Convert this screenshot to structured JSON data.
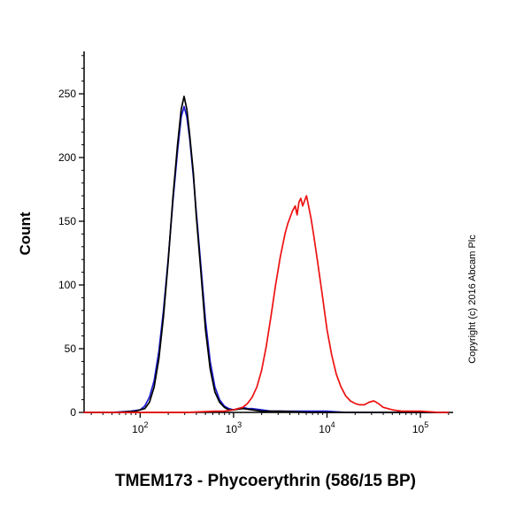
{
  "title": "TMEM173 - Phycoerythrin (586/15 BP)",
  "ylabel": "Count",
  "copyright": "Copyright (c) 2016 Abcam Plc",
  "chart_data": {
    "type": "line",
    "subtype": "flow-cytometry-histogram",
    "title": "TMEM173 - Phycoerythrin (586/15 BP)",
    "xlabel": "TMEM173 - Phycoerythrin (586/15 BP)",
    "ylabel": "Count",
    "x_axis": {
      "scale": "log10",
      "min_log": 1.4,
      "max_log": 5.35,
      "tick_exponents": [
        2,
        3,
        4,
        5
      ],
      "tick_base": "10"
    },
    "y_axis": {
      "min": 0,
      "max": 250,
      "major_ticks": [
        0,
        50,
        100,
        150,
        200,
        250
      ],
      "minor_step": 10,
      "minor_max": 280
    },
    "grid": false,
    "legend": "none",
    "series": [
      {
        "name": "control-blue",
        "color": "#1c1ccc",
        "points": [
          [
            1.4,
            0
          ],
          [
            1.7,
            0
          ],
          [
            1.9,
            1
          ],
          [
            2.0,
            2
          ],
          [
            2.05,
            5
          ],
          [
            2.1,
            12
          ],
          [
            2.15,
            25
          ],
          [
            2.2,
            48
          ],
          [
            2.25,
            80
          ],
          [
            2.3,
            120
          ],
          [
            2.35,
            165
          ],
          [
            2.4,
            205
          ],
          [
            2.44,
            232
          ],
          [
            2.47,
            240
          ],
          [
            2.5,
            232
          ],
          [
            2.53,
            215
          ],
          [
            2.57,
            185
          ],
          [
            2.6,
            158
          ],
          [
            2.65,
            115
          ],
          [
            2.7,
            72
          ],
          [
            2.75,
            40
          ],
          [
            2.8,
            20
          ],
          [
            2.85,
            10
          ],
          [
            2.9,
            5
          ],
          [
            2.95,
            3
          ],
          [
            3.0,
            2
          ],
          [
            3.05,
            3
          ],
          [
            3.1,
            4
          ],
          [
            3.15,
            3
          ],
          [
            3.2,
            3
          ],
          [
            3.3,
            2
          ],
          [
            3.4,
            1
          ],
          [
            3.6,
            1
          ],
          [
            3.8,
            1
          ],
          [
            4.0,
            1
          ],
          [
            4.2,
            0
          ],
          [
            4.6,
            0
          ],
          [
            5.0,
            0
          ],
          [
            5.3,
            0
          ]
        ]
      },
      {
        "name": "control-black",
        "color": "#000000",
        "points": [
          [
            1.4,
            0
          ],
          [
            1.75,
            0
          ],
          [
            1.95,
            1
          ],
          [
            2.05,
            3
          ],
          [
            2.1,
            8
          ],
          [
            2.15,
            20
          ],
          [
            2.2,
            42
          ],
          [
            2.25,
            75
          ],
          [
            2.3,
            118
          ],
          [
            2.35,
            168
          ],
          [
            2.4,
            210
          ],
          [
            2.44,
            238
          ],
          [
            2.47,
            248
          ],
          [
            2.5,
            238
          ],
          [
            2.53,
            218
          ],
          [
            2.57,
            188
          ],
          [
            2.6,
            155
          ],
          [
            2.65,
            110
          ],
          [
            2.7,
            65
          ],
          [
            2.75,
            34
          ],
          [
            2.8,
            16
          ],
          [
            2.85,
            8
          ],
          [
            2.9,
            4
          ],
          [
            2.95,
            2
          ],
          [
            3.0,
            2
          ],
          [
            3.1,
            3
          ],
          [
            3.2,
            2
          ],
          [
            3.3,
            1
          ],
          [
            3.5,
            1
          ],
          [
            3.8,
            0
          ],
          [
            4.2,
            0
          ],
          [
            4.8,
            0
          ],
          [
            5.3,
            0
          ]
        ]
      },
      {
        "name": "tmem173-pe-red",
        "color": "#ee1111",
        "points": [
          [
            1.4,
            0
          ],
          [
            2.0,
            0
          ],
          [
            2.5,
            0
          ],
          [
            2.8,
            1
          ],
          [
            2.9,
            1
          ],
          [
            3.0,
            2
          ],
          [
            3.1,
            4
          ],
          [
            3.15,
            7
          ],
          [
            3.2,
            12
          ],
          [
            3.25,
            20
          ],
          [
            3.3,
            33
          ],
          [
            3.35,
            52
          ],
          [
            3.4,
            75
          ],
          [
            3.45,
            100
          ],
          [
            3.5,
            122
          ],
          [
            3.55,
            140
          ],
          [
            3.58,
            148
          ],
          [
            3.6,
            152
          ],
          [
            3.63,
            158
          ],
          [
            3.66,
            162
          ],
          [
            3.68,
            155
          ],
          [
            3.7,
            165
          ],
          [
            3.72,
            168
          ],
          [
            3.74,
            162
          ],
          [
            3.76,
            166
          ],
          [
            3.78,
            170
          ],
          [
            3.8,
            163
          ],
          [
            3.83,
            152
          ],
          [
            3.86,
            138
          ],
          [
            3.9,
            118
          ],
          [
            3.95,
            92
          ],
          [
            4.0,
            65
          ],
          [
            4.05,
            45
          ],
          [
            4.1,
            30
          ],
          [
            4.15,
            20
          ],
          [
            4.2,
            13
          ],
          [
            4.25,
            9
          ],
          [
            4.3,
            7
          ],
          [
            4.35,
            6
          ],
          [
            4.4,
            6
          ],
          [
            4.45,
            8
          ],
          [
            4.5,
            9
          ],
          [
            4.55,
            7
          ],
          [
            4.6,
            4
          ],
          [
            4.7,
            2
          ],
          [
            4.8,
            1
          ],
          [
            5.0,
            1
          ],
          [
            5.2,
            0
          ],
          [
            5.3,
            0
          ]
        ]
      }
    ]
  }
}
